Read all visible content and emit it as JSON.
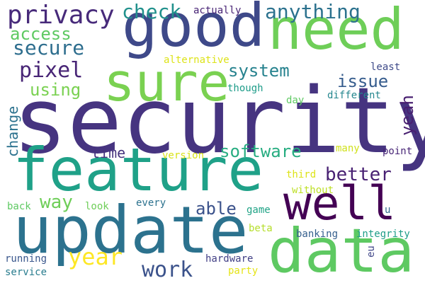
{
  "words": [
    {
      "text": "security",
      "color": "#463480"
    },
    {
      "text": "feature",
      "color": "#1fa188"
    },
    {
      "text": "update",
      "color": "#2c728e"
    },
    {
      "text": "data",
      "color": "#5ec962"
    },
    {
      "text": "good",
      "color": "#3e4989"
    },
    {
      "text": "need",
      "color": "#6ece58"
    },
    {
      "text": "sure",
      "color": "#7ad151"
    },
    {
      "text": "well",
      "color": "#440154"
    },
    {
      "text": "privacy",
      "color": "#472a7a"
    },
    {
      "text": "check",
      "color": "#21918c"
    },
    {
      "text": "anything",
      "color": "#2c728e"
    },
    {
      "text": "access",
      "color": "#5ec962"
    },
    {
      "text": "secure",
      "color": "#2e6e8e"
    },
    {
      "text": "pixel",
      "color": "#482576"
    },
    {
      "text": "system",
      "color": "#26828e"
    },
    {
      "text": "issue",
      "color": "#365c8d"
    },
    {
      "text": "using",
      "color": "#7ad151"
    },
    {
      "text": "change",
      "color": "#2c728e"
    },
    {
      "text": "yeah",
      "color": "#481f70"
    },
    {
      "text": "software",
      "color": "#27ad81"
    },
    {
      "text": "time",
      "color": "#46337e"
    },
    {
      "text": "better",
      "color": "#482173"
    },
    {
      "text": "way",
      "color": "#6ece58"
    },
    {
      "text": "able",
      "color": "#3b528b"
    },
    {
      "text": "year",
      "color": "#fde725"
    },
    {
      "text": "work",
      "color": "#3b528b"
    },
    {
      "text": "actually",
      "color": "#482475"
    },
    {
      "text": "alternative",
      "color": "#dde318"
    },
    {
      "text": "least",
      "color": "#3e4a89"
    },
    {
      "text": "though",
      "color": "#1e9c89"
    },
    {
      "text": "different",
      "color": "#24868e"
    },
    {
      "text": "day",
      "color": "#5ec962"
    },
    {
      "text": "version",
      "color": "#d8e219"
    },
    {
      "text": "many",
      "color": "#d0e11c"
    },
    {
      "text": "point",
      "color": "#482677"
    },
    {
      "text": "third",
      "color": "#dde318"
    },
    {
      "text": "without",
      "color": "#bddf26"
    },
    {
      "text": "every",
      "color": "#2c728e"
    },
    {
      "text": "look",
      "color": "#6ece58"
    },
    {
      "text": "back",
      "color": "#5ec962"
    },
    {
      "text": "game",
      "color": "#20a386"
    },
    {
      "text": "u",
      "color": "#31688e"
    },
    {
      "text": "beta",
      "color": "#b5de2b"
    },
    {
      "text": "banking",
      "color": "#355f8d"
    },
    {
      "text": "integrity",
      "color": "#1f9e89"
    },
    {
      "text": "eu",
      "color": "#404688"
    },
    {
      "text": "running",
      "color": "#39568c"
    },
    {
      "text": "hardware",
      "color": "#424086"
    },
    {
      "text": "service",
      "color": "#287c8e"
    },
    {
      "text": "party",
      "color": "#e5e419"
    }
  ]
}
